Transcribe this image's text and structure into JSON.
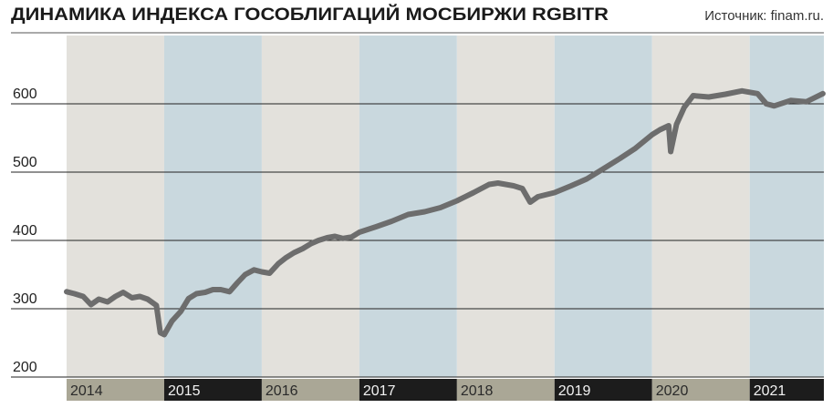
{
  "chart_data": {
    "type": "line",
    "title": "ДИНАМИКА ИНДЕКСА ГОСОБЛИГАЦИЙ МОСБИРЖИ RGBITR",
    "source": "Источник: finam.ru.",
    "x": [
      2014.0,
      2014.08,
      2014.17,
      2014.25,
      2014.33,
      2014.42,
      2014.5,
      2014.58,
      2014.67,
      2014.75,
      2014.83,
      2014.92,
      2014.96,
      2015.0,
      2015.08,
      2015.17,
      2015.25,
      2015.33,
      2015.42,
      2015.5,
      2015.58,
      2015.67,
      2015.75,
      2015.83,
      2015.92,
      2016.0,
      2016.08,
      2016.17,
      2016.25,
      2016.33,
      2016.42,
      2016.5,
      2016.58,
      2016.67,
      2016.75,
      2016.83,
      2016.92,
      2017.0,
      2017.17,
      2017.33,
      2017.5,
      2017.67,
      2017.83,
      2018.0,
      2018.17,
      2018.33,
      2018.42,
      2018.58,
      2018.67,
      2018.75,
      2018.83,
      2019.0,
      2019.17,
      2019.33,
      2019.5,
      2019.67,
      2019.83,
      2020.0,
      2020.08,
      2020.17,
      2020.19,
      2020.25,
      2020.33,
      2020.42,
      2020.58,
      2020.75,
      2020.92,
      2021.08,
      2021.17,
      2021.25,
      2021.42,
      2021.58,
      2021.75
    ],
    "series": [
      {
        "color": "#6d6d6d",
        "values": [
          325,
          322,
          318,
          306,
          314,
          310,
          318,
          324,
          316,
          318,
          314,
          305,
          265,
          262,
          282,
          296,
          315,
          322,
          324,
          328,
          328,
          325,
          338,
          350,
          357,
          354,
          352,
          366,
          375,
          382,
          388,
          395,
          400,
          404,
          406,
          403,
          405,
          412,
          420,
          428,
          438,
          442,
          448,
          458,
          470,
          482,
          484,
          480,
          476,
          456,
          464,
          470,
          480,
          490,
          505,
          520,
          535,
          555,
          562,
          568,
          530,
          570,
          595,
          612,
          610,
          614,
          619,
          615,
          600,
          597,
          605,
          603,
          615
        ]
      }
    ],
    "xlim": [
      2014,
      2021.76
    ],
    "xticks": [
      2014,
      2015,
      2016,
      2017,
      2018,
      2019,
      2020,
      2021
    ],
    "ylim": [
      200,
      700
    ],
    "yticks": [
      200,
      300,
      400,
      500,
      600
    ],
    "grid": true
  }
}
